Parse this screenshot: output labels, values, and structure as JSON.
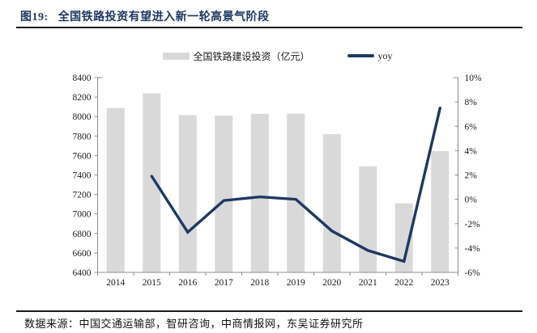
{
  "header": {
    "figure_label": "图19:",
    "title": "全国铁路投资有望进入新一轮高景气阶段"
  },
  "legend": {
    "bar_label": "全国铁路建设投资（亿元）",
    "line_label": "yoy"
  },
  "footer": {
    "source": "数据来源：中国交通运输部，智研咨询，中商情报网，东吴证券研究所"
  },
  "colors": {
    "accent_navy": "#1F3864",
    "bar_fill": "#D9D9D9",
    "axis_gray": "#8C8C8C",
    "label_text": "#1A1A1A",
    "rule_black": "#1A1A1A"
  },
  "chart_data": {
    "type": "bar+line",
    "title": "全国铁路投资有望进入新一轮高景气阶段",
    "categories": [
      "2014",
      "2015",
      "2016",
      "2017",
      "2018",
      "2019",
      "2020",
      "2021",
      "2022",
      "2023"
    ],
    "series": [
      {
        "name": "全国铁路建设投资（亿元）",
        "type": "bar",
        "yaxis": "left",
        "color": "#D9D9D9",
        "values": [
          8088,
          8238,
          8015,
          8010,
          8028,
          8029,
          7819,
          7489,
          7109,
          7645
        ]
      },
      {
        "name": "yoy",
        "type": "line",
        "yaxis": "right",
        "color": "#1F3864",
        "values": [
          null,
          1.9,
          -2.7,
          -0.1,
          0.2,
          0.0,
          -2.6,
          -4.2,
          -5.1,
          7.5
        ]
      }
    ],
    "left_axis": {
      "min": 6400,
      "max": 8400,
      "step": 200,
      "suffix": ""
    },
    "right_axis": {
      "min": -6,
      "max": 10,
      "step": 2,
      "suffix": "%"
    },
    "legend_position": "top",
    "grid": false
  }
}
